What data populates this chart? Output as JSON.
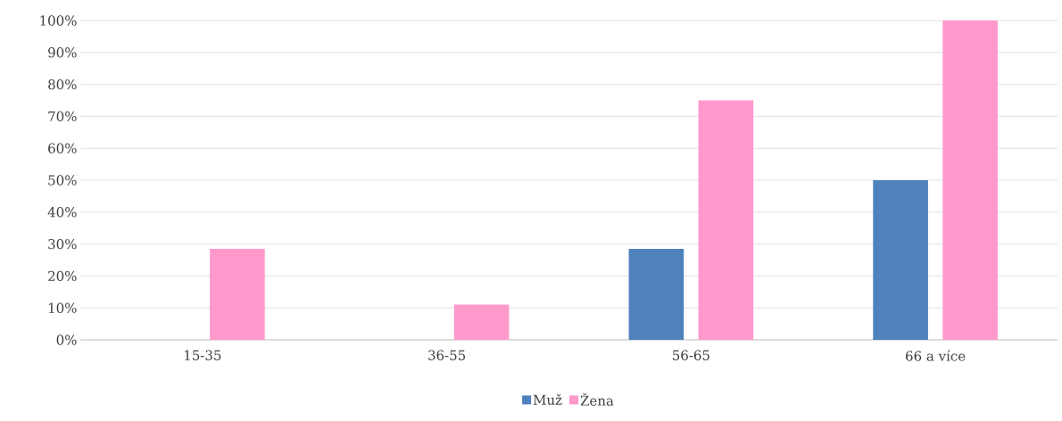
{
  "chart_data": {
    "type": "bar",
    "categories": [
      "15-35",
      "36-55",
      "56-65",
      "66 a více"
    ],
    "series": [
      {
        "name": "Muž",
        "color": "#4f81bd",
        "values": [
          0,
          0,
          28.5,
          50
        ]
      },
      {
        "name": "Žena",
        "color": "#ff99cc",
        "values": [
          28.5,
          11,
          75,
          100
        ]
      }
    ],
    "ylim": [
      0,
      100
    ],
    "yticks": [
      {
        "value": 0,
        "label": "0%"
      },
      {
        "value": 10,
        "label": "10%"
      },
      {
        "value": 20,
        "label": "20%"
      },
      {
        "value": 30,
        "label": "30%"
      },
      {
        "value": 40,
        "label": "40%"
      },
      {
        "value": 50,
        "label": "50%"
      },
      {
        "value": 60,
        "label": "60%"
      },
      {
        "value": 70,
        "label": "70%"
      },
      {
        "value": 80,
        "label": "80%"
      },
      {
        "value": 90,
        "label": "90%"
      },
      {
        "value": 100,
        "label": "100%"
      }
    ],
    "grid": "y",
    "legend": "bottom"
  }
}
